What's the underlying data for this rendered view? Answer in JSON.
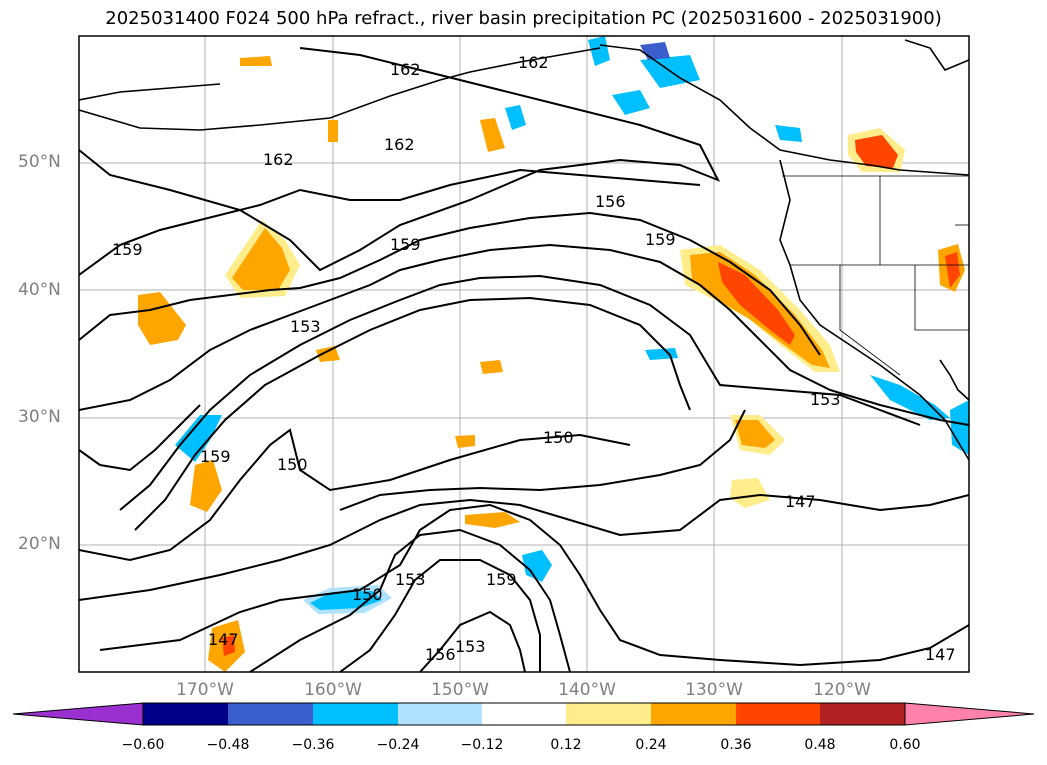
{
  "title": "2025031400 F024 500 hPa refract., river basin precipitation PC (2025031600 - 2025031900)",
  "map": {
    "lat_labels": [
      "50°N",
      "40°N",
      "30°N",
      "20°N"
    ],
    "lon_labels": [
      "170°W",
      "160°W",
      "150°W",
      "140°W",
      "130°W",
      "120°W"
    ],
    "contour_labels": [
      "162",
      "162",
      "162",
      "162",
      "159",
      "156",
      "159",
      "159",
      "153",
      "159",
      "150",
      "150",
      "153",
      "147",
      "147",
      "159",
      "150",
      "153",
      "156",
      "153",
      "147"
    ]
  },
  "colorbar": {
    "tick_labels": [
      "−0.60",
      "−0.48",
      "−0.36",
      "−0.24",
      "−0.12",
      "0.12",
      "0.24",
      "0.36",
      "0.48",
      "0.60"
    ],
    "colors": [
      "#9b30d0",
      "#00008b",
      "#3a5fcd",
      "#00bfff",
      "#b0e2ff",
      "#ffffff",
      "#ffec8b",
      "#ffa500",
      "#ff4500",
      "#b22222",
      "#ff82ab"
    ]
  }
}
